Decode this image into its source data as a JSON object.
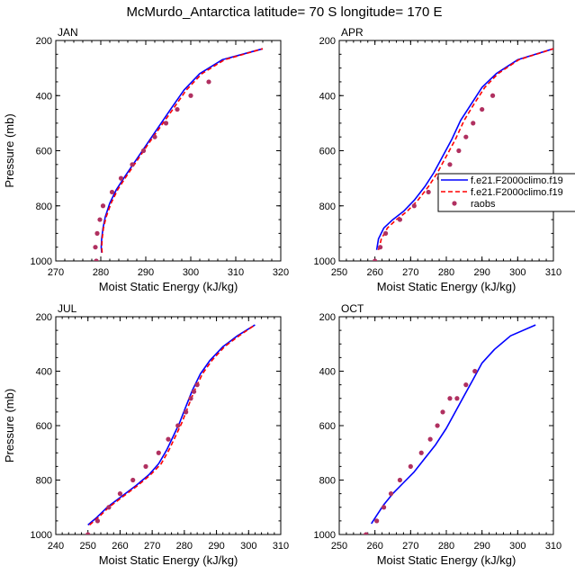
{
  "title": "McMurdo_Antarctica  latitude= 70 S longitude= 170 E",
  "legend_entries": [
    {
      "name": "f.e21.F2000climo.f19",
      "style": "solid",
      "color": "#0000ff"
    },
    {
      "name": "f.e21.F2000climo.f19",
      "style": "dashed",
      "color": "#ff0000"
    },
    {
      "name": "raobs",
      "style": "marker",
      "color": "#b03060"
    }
  ],
  "chart_data": [
    {
      "type": "line",
      "panel": "JAN",
      "xlabel": "Moist Static Energy (kJ/kg)",
      "ylabel": "Pressure (mb)",
      "xlim": [
        270,
        320
      ],
      "ylim": [
        1000,
        200
      ],
      "xticks": [
        270,
        280,
        290,
        300,
        310,
        320
      ],
      "yticks": [
        200,
        400,
        600,
        800,
        1000
      ],
      "series": [
        {
          "style": "solid",
          "color": "#0000ff",
          "x": [
            280.2,
            280.1,
            280.2,
            280.5,
            281.0,
            282.0,
            283.5,
            285.5,
            288.0,
            290.5,
            293.0,
            295.5,
            298.5,
            302.0,
            307.0,
            316.0
          ],
          "y": [
            970,
            950,
            920,
            880,
            840,
            790,
            740,
            690,
            630,
            570,
            510,
            450,
            380,
            320,
            270,
            230
          ]
        },
        {
          "style": "dashed",
          "color": "#ff0000",
          "x": [
            280.3,
            280.2,
            280.3,
            280.6,
            281.2,
            282.3,
            283.8,
            285.8,
            288.3,
            290.8,
            293.4,
            296.0,
            299.0,
            302.5,
            307.5,
            316.0
          ],
          "y": [
            970,
            950,
            920,
            880,
            840,
            790,
            740,
            690,
            630,
            570,
            510,
            450,
            380,
            320,
            270,
            230
          ]
        },
        {
          "style": "marker",
          "color": "#b03060",
          "x": [
            279.0,
            278.8,
            279.2,
            279.8,
            280.5,
            282.5,
            284.5,
            287.0,
            289.5,
            292.0,
            294.5,
            297.0,
            300.0,
            304.0
          ],
          "y": [
            1000,
            950,
            900,
            850,
            800,
            750,
            700,
            650,
            600,
            550,
            500,
            450,
            400,
            350
          ]
        }
      ]
    },
    {
      "type": "line",
      "panel": "APR",
      "xlabel": "Moist Static Energy (kJ/kg)",
      "ylabel": "",
      "xlim": [
        250,
        310
      ],
      "ylim": [
        1000,
        200
      ],
      "xticks": [
        250,
        260,
        270,
        280,
        290,
        300,
        310
      ],
      "yticks": [
        200,
        400,
        600,
        800,
        1000
      ],
      "series": [
        {
          "style": "solid",
          "color": "#0000ff",
          "x": [
            260.5,
            261.0,
            262.5,
            265.0,
            268.0,
            271.0,
            274.0,
            276.5,
            279.0,
            281.5,
            284.0,
            287.0,
            290.0,
            294.0,
            300.0,
            310.0
          ],
          "y": [
            960,
            920,
            880,
            850,
            820,
            780,
            730,
            680,
            620,
            560,
            490,
            430,
            370,
            320,
            270,
            230
          ]
        },
        {
          "style": "dashed",
          "color": "#ff0000",
          "x": [
            261.0,
            261.8,
            263.5,
            266.0,
            269.0,
            272.0,
            275.0,
            277.5,
            280.0,
            282.5,
            285.0,
            287.8,
            290.8,
            294.5,
            300.3,
            310.0
          ],
          "y": [
            960,
            920,
            880,
            850,
            820,
            780,
            730,
            680,
            620,
            560,
            490,
            430,
            370,
            320,
            270,
            230
          ]
        },
        {
          "style": "marker",
          "color": "#b03060",
          "x": [
            260.0,
            261.5,
            263.0,
            267.0,
            271.0,
            275.0,
            278.0,
            281.0,
            283.5,
            285.5,
            287.5,
            290.0,
            293.0
          ],
          "y": [
            1000,
            950,
            900,
            850,
            800,
            750,
            700,
            650,
            600,
            550,
            500,
            450,
            400
          ]
        }
      ]
    },
    {
      "type": "line",
      "panel": "JUL",
      "xlabel": "Moist Static Energy (kJ/kg)",
      "ylabel": "Pressure (mb)",
      "xlim": [
        240,
        310
      ],
      "ylim": [
        1000,
        200
      ],
      "xticks": [
        240,
        250,
        260,
        270,
        280,
        290,
        300,
        310
      ],
      "yticks": [
        200,
        400,
        600,
        800,
        1000
      ],
      "series": [
        {
          "style": "solid",
          "color": "#0000ff",
          "x": [
            250.0,
            252.5,
            256.0,
            260.5,
            265.0,
            269.0,
            272.0,
            274.5,
            276.5,
            278.5,
            280.5,
            282.5,
            285.0,
            288.0,
            292.0,
            296.5,
            302.0
          ],
          "y": [
            965,
            940,
            900,
            860,
            820,
            780,
            740,
            690,
            640,
            590,
            530,
            470,
            410,
            360,
            310,
            270,
            230
          ]
        },
        {
          "style": "dashed",
          "color": "#ff0000",
          "x": [
            250.5,
            253.0,
            256.5,
            261.0,
            265.5,
            269.5,
            272.8,
            275.2,
            277.2,
            279.2,
            281.2,
            283.2,
            285.6,
            288.6,
            292.5,
            297.0,
            302.0
          ],
          "y": [
            965,
            940,
            900,
            860,
            820,
            780,
            740,
            690,
            640,
            590,
            530,
            470,
            410,
            360,
            310,
            270,
            230
          ]
        },
        {
          "style": "marker",
          "color": "#b03060",
          "x": [
            250.0,
            253.0,
            256.5,
            260.0,
            264.0,
            268.0,
            272.0,
            275.0,
            278.0,
            280.5,
            282.0,
            283.0,
            284.0
          ],
          "y": [
            1000,
            950,
            900,
            850,
            800,
            750,
            700,
            650,
            600,
            550,
            500,
            475,
            450
          ]
        }
      ]
    },
    {
      "type": "line",
      "panel": "OCT",
      "xlabel": "Moist Static Energy (kJ/kg)",
      "ylabel": "",
      "xlim": [
        250,
        310
      ],
      "ylim": [
        1000,
        200
      ],
      "xticks": [
        250,
        260,
        270,
        280,
        290,
        300,
        310
      ],
      "yticks": [
        200,
        400,
        600,
        800,
        1000
      ],
      "series": [
        {
          "style": "solid",
          "color": "#0000ff",
          "x": [
            259.0,
            260.5,
            262.5,
            265.0,
            268.0,
            271.0,
            274.0,
            277.0,
            280.0,
            282.5,
            285.0,
            287.5,
            290.0,
            293.5,
            298.0,
            305.0
          ],
          "y": [
            960,
            930,
            890,
            850,
            810,
            770,
            720,
            670,
            610,
            550,
            490,
            430,
            370,
            320,
            270,
            230
          ]
        },
        {
          "style": "marker",
          "color": "#b03060",
          "x": [
            257.5,
            260.5,
            262.5,
            264.5,
            267.0,
            270.0,
            273.0,
            275.5,
            277.5,
            279.0,
            281.0,
            283.0,
            285.5,
            288.0
          ],
          "y": [
            1000,
            950,
            900,
            850,
            800,
            750,
            700,
            650,
            600,
            550,
            500,
            500,
            450,
            400
          ]
        }
      ]
    }
  ]
}
